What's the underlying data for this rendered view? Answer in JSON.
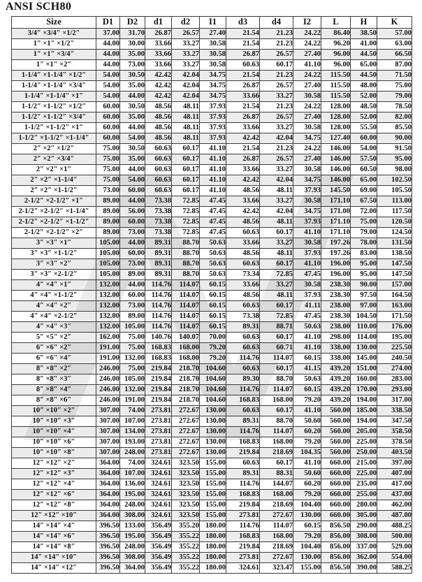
{
  "title": "ANSI SCH80",
  "table": {
    "columns": [
      "Size",
      "D1",
      "D2",
      "d1",
      "d2",
      "I1",
      "d3",
      "d4",
      "I2",
      "L",
      "H",
      "K"
    ],
    "rows": [
      [
        "3/4″ ×3/4″ ×1/2″",
        "37.00",
        "31.70",
        "26.87",
        "26.57",
        "27.40",
        "21.54",
        "21.23",
        "24.22",
        "86.40",
        "38.50",
        "57.00"
      ],
      [
        "1″ ×1″ ×1/2″",
        "44.00",
        "30.00",
        "33.66",
        "33.27",
        "30.58",
        "21.54",
        "21.23",
        "24.22",
        "96.20",
        "41.00",
        "63.00"
      ],
      [
        "1″ ×1″ ×3/4″",
        "44.00",
        "35.00",
        "33.66",
        "33.27",
        "30.58",
        "26.87",
        "26.57",
        "27.40",
        "96.00",
        "44.50",
        "66.50"
      ],
      [
        "1″ ×1″ ×2″",
        "44.00",
        "73.00",
        "33.66",
        "33.27",
        "30.58",
        "60.63",
        "60.17",
        "41.10",
        "96.00",
        "65.00",
        "87.00"
      ],
      [
        "1-1/4″ ×1-1/4″ ×1/2″",
        "54.00",
        "30.50",
        "42.42",
        "42.04",
        "34.75",
        "21.54",
        "21.23",
        "24.22",
        "115.50",
        "44.50",
        "71.50"
      ],
      [
        "1-1/4″ ×1-1/4″ ×3/4″",
        "54.00",
        "35.00",
        "42.42",
        "42.04",
        "34.75",
        "26.87",
        "26.57",
        "27.40",
        "115.50",
        "48.00",
        "75.00"
      ],
      [
        "1-1/4″ ×1-1/4″ ×1″",
        "54.00",
        "44.00",
        "42.42",
        "42.04",
        "34.75",
        "33.66",
        "33.27",
        "30.58",
        "115.50",
        "52.00",
        "79.00"
      ],
      [
        "1-1/2″ ×1-1/2″ ×1/2″",
        "60.00",
        "30.50",
        "48.56",
        "48.11",
        "37.93",
        "21.54",
        "21.23",
        "24.22",
        "128.00",
        "48.50",
        "78.50"
      ],
      [
        "1-1/2″ ×1-1/2″ ×3/4″",
        "60.00",
        "35.00",
        "48.56",
        "48.11",
        "37.93",
        "26.87",
        "26.57",
        "27.40",
        "128.00",
        "52.00",
        "82.00"
      ],
      [
        "1-1/2″ ×1-1/2″ ×1″",
        "60.00",
        "44.00",
        "48.56",
        "48.11",
        "37.93",
        "33.66",
        "33.27",
        "30.58",
        "128.00",
        "55.50",
        "85.50"
      ],
      [
        "1-1/2″ ×1-1/2″ ×1-1/4″",
        "60.00",
        "54.00",
        "48.56",
        "48.11",
        "37.93",
        "42.42",
        "42.04",
        "34.75",
        "127.40",
        "60.00",
        "90.00"
      ],
      [
        "2″ ×2″ ×1/2″",
        "75.00",
        "30.50",
        "60.63",
        "60.17",
        "41.10",
        "21.54",
        "21.23",
        "24.22",
        "146.00",
        "54.00",
        "91.50"
      ],
      [
        "2″ ×2″ ×3/4″",
        "75.00",
        "35.00",
        "60.63",
        "60.17",
        "41.10",
        "26.87",
        "26.57",
        "27.40",
        "146.00",
        "57.50",
        "95.00"
      ],
      [
        "2″ ×2″ ×1″",
        "75.00",
        "44.00",
        "60.63",
        "60.17",
        "41.10",
        "33.66",
        "33.27",
        "30.58",
        "146.00",
        "60.50",
        "98.00"
      ],
      [
        "2″ ×2″ ×1-1/4″",
        "75.00",
        "54.00",
        "60.63",
        "60.17",
        "41.10",
        "42.42",
        "42.04",
        "34.75",
        "146.00",
        "65.00",
        "102.50"
      ],
      [
        "2″ ×2″ ×1-1/2″",
        "73.00",
        "60.00",
        "60.63",
        "60.17",
        "41.10",
        "48.56",
        "48.11",
        "37.93",
        "145.50",
        "69.00",
        "105.50"
      ],
      [
        "2-1/2″ ×2-1/2″ ×1″",
        "89.00",
        "44.00",
        "73.38",
        "72.85",
        "47.45",
        "33.66",
        "33.27",
        "30.58",
        "171.10",
        "67.50",
        "113.00"
      ],
      [
        "2-1/2″ ×2-1/2″ ×1-1/4″",
        "89.00",
        "56.00",
        "73.38",
        "72.85",
        "47.45",
        "42.42",
        "42.04",
        "34.75",
        "171.00",
        "72.00",
        "117.50"
      ],
      [
        "2-1/2″ ×2-1/2″ ×1-1/2″",
        "89.00",
        "60.00",
        "73.38",
        "72.85",
        "47.45",
        "48.56",
        "48.11",
        "37.93",
        "171.10",
        "75.00",
        "120.50"
      ],
      [
        "2-1/2″ ×2-1/2″ ×2″",
        "89.00",
        "73.00",
        "73.38",
        "72.85",
        "47.45",
        "60.63",
        "60.17",
        "41.10",
        "171.10",
        "79.00",
        "124.50"
      ],
      [
        "3″ ×3″ ×1″",
        "105.00",
        "44.00",
        "89.31",
        "88.70",
        "50.63",
        "33.66",
        "33.27",
        "30.58",
        "197.26",
        "78.00",
        "131.50"
      ],
      [
        "3″ ×3″ ×1-1/2″",
        "105.00",
        "60.00",
        "89.31",
        "88.70",
        "50.63",
        "48.56",
        "48.11",
        "37.93",
        "197.26",
        "83.00",
        "138.50"
      ],
      [
        "3″ ×3″ ×2″",
        "105.00",
        "73.00",
        "89.31",
        "88.70",
        "50.63",
        "60.63",
        "60.17",
        "41.10",
        "196.00",
        "95.00",
        "147.50"
      ],
      [
        "3″ ×3″ ×2-1/2″",
        "105.00",
        "89.00",
        "89.31",
        "88.70",
        "50.63",
        "73.34",
        "72.85",
        "47.45",
        "196.00",
        "95.00",
        "147.50"
      ],
      [
        "4″ ×4″ ×1″",
        "132.00",
        "44.00",
        "114.76",
        "114.07",
        "60.15",
        "33.66",
        "33.27",
        "30.58",
        "238.30",
        "90.00",
        "157.00"
      ],
      [
        "4″ ×4″ ×1-1/2″",
        "132.00",
        "60.00",
        "114.76",
        "114.07",
        "60.15",
        "48.56",
        "48.11",
        "37.93",
        "238.30",
        "97.50",
        "164.50"
      ],
      [
        "4″ ×4″ ×2″",
        "132.00",
        "73.00",
        "114.76",
        "114.07",
        "60.15",
        "60.63",
        "60.17",
        "41.11",
        "238.00",
        "97.00",
        "163.00"
      ],
      [
        "4″ ×4″ ×2-1/2″",
        "132.00",
        "89.00",
        "114.76",
        "114.07",
        "60.15",
        "73.38",
        "72.85",
        "47.45",
        "238.30",
        "104.50",
        "171.50"
      ],
      [
        "4″ ×4″ ×3″",
        "132.00",
        "105.00",
        "114.76",
        "114.07",
        "60.15",
        "89.31",
        "88.71",
        "50.63",
        "238.00",
        "110.00",
        "176.00"
      ],
      [
        "5″ ×5″ ×2″",
        "162.00",
        "75.00",
        "140.76",
        "140.07",
        "70.00",
        "60.63",
        "60.17",
        "41.10",
        "298.00",
        "114.00",
        "195.00"
      ],
      [
        "6″ ×6″ ×2″",
        "191.00",
        "75.00",
        "168.83",
        "168.00",
        "79.20",
        "60.63",
        "60.71",
        "41.10",
        "338.00",
        "130.00",
        "225.50"
      ],
      [
        "6″ ×6″ ×4″",
        "191.00",
        "132.00",
        "168.83",
        "168.00",
        "79.20",
        "114.76",
        "114.07",
        "60.15",
        "338.00",
        "145.00",
        "240.50"
      ],
      [
        "8″ ×8″ ×2″",
        "246.00",
        "75.00",
        "219.84",
        "218.70",
        "104.60",
        "60.63",
        "60.17",
        "41.15",
        "439.20",
        "151.00",
        "274.00"
      ],
      [
        "8″ ×8″ ×3″",
        "246.00",
        "105.00",
        "219.84",
        "218.70",
        "104.60",
        "89.30",
        "88.70",
        "50.63",
        "439.20",
        "160.00",
        "283.00"
      ],
      [
        "8″ ×8″ ×4″",
        "246.00",
        "132.00",
        "219.84",
        "218.70",
        "104.60",
        "114.76",
        "114.07",
        "60.15",
        "439.20",
        "170.00",
        "293.00"
      ],
      [
        "8″ ×8″ ×6″",
        "246.00",
        "191.00",
        "219.84",
        "218.70",
        "104.60",
        "168.83",
        "168.00",
        "79.20",
        "439.20",
        "194.00",
        "317.00"
      ],
      [
        "10″ ×10″ ×2″",
        "307.00",
        "74.00",
        "273.81",
        "272.67",
        "130.00",
        "60.63",
        "60.17",
        "41.10",
        "560.00",
        "185.00",
        "338.50"
      ],
      [
        "10″ ×10″ ×3″",
        "307.00",
        "107.00",
        "273.81",
        "272.67",
        "130.00",
        "89.31",
        "88.70",
        "50.60",
        "560.00",
        "194.00",
        "347.50"
      ],
      [
        "10″ ×10″ ×4″",
        "307.00",
        "134.00",
        "273.81",
        "272.67",
        "130.00",
        "114.76",
        "114.07",
        "60.20",
        "560.00",
        "205.00",
        "358.50"
      ],
      [
        "10″ ×10″ ×6″",
        "307.00",
        "193.00",
        "273.81",
        "272.67",
        "130.00",
        "168.83",
        "168.00",
        "79.20",
        "560.00",
        "225.00",
        "378.50"
      ],
      [
        "10″ ×10″ ×8″",
        "307.00",
        "248.00",
        "273.81",
        "272.67",
        "130.00",
        "219.84",
        "218.69",
        "104.35",
        "560.00",
        "250.00",
        "403.50"
      ],
      [
        "12″ ×12″ ×2″",
        "364.00",
        "74.00",
        "324.61",
        "323.50",
        "155.00",
        "60.63",
        "60.17",
        "41.10",
        "660.00",
        "215.00",
        "397.00"
      ],
      [
        "12″ ×12″ ×3″",
        "364.00",
        "107.00",
        "324.61",
        "323.50",
        "155.00",
        "89.31",
        "88.31",
        "50.60",
        "660.00",
        "225.00",
        "407.00"
      ],
      [
        "12″ ×12″ ×4″",
        "364.00",
        "136.00",
        "324.61",
        "323.50",
        "155.00",
        "114.76",
        "144.07",
        "60.20",
        "660.00",
        "235.00",
        "417.00"
      ],
      [
        "12″ ×12″ ×6″",
        "364.00",
        "195.00",
        "324.61",
        "323.50",
        "155.00",
        "168.83",
        "168.00",
        "79.20",
        "660.00",
        "255.00",
        "437.00"
      ],
      [
        "12″ ×12″ ×8″",
        "364.00",
        "248.00",
        "324.61",
        "323.50",
        "155.00",
        "219.84",
        "218.69",
        "104.40",
        "660.00",
        "280.00",
        "462.00"
      ],
      [
        "12″ ×12″ ×10″",
        "364.00",
        "308.00",
        "324.61",
        "323.50",
        "155.00",
        "273.81",
        "272.67",
        "130.00",
        "660.00",
        "305.00",
        "487.00"
      ],
      [
        "14″ ×14″ ×4″",
        "396.50",
        "133.00",
        "356.49",
        "355.20",
        "180.00",
        "114.76",
        "114.07",
        "60.15",
        "856.50",
        "290.00",
        "488.25"
      ],
      [
        "14″ ×14″ ×6″",
        "396.50",
        "195.00",
        "356.49",
        "355.22",
        "180.00",
        "168.83",
        "168.00",
        "79.20",
        "856.00",
        "308.00",
        "500.00"
      ],
      [
        "14″ ×14″ ×8″",
        "396.50",
        "248.00",
        "356.49",
        "355.22",
        "180.00",
        "219.84",
        "218.69",
        "104.40",
        "856.00",
        "337.00",
        "529.00"
      ],
      [
        "14″ ×14″ ×10″",
        "396.50",
        "308.00",
        "356.49",
        "355.22",
        "180.00",
        "273.81",
        "272.67",
        "130.00",
        "856.00",
        "362.00",
        "554.00"
      ],
      [
        "14″ ×14″ ×12″",
        "396.50",
        "364.00",
        "356.49",
        "355.22",
        "180.00",
        "324.61",
        "323.47",
        "155.00",
        "856.50",
        "390.00",
        "588.25"
      ]
    ]
  }
}
